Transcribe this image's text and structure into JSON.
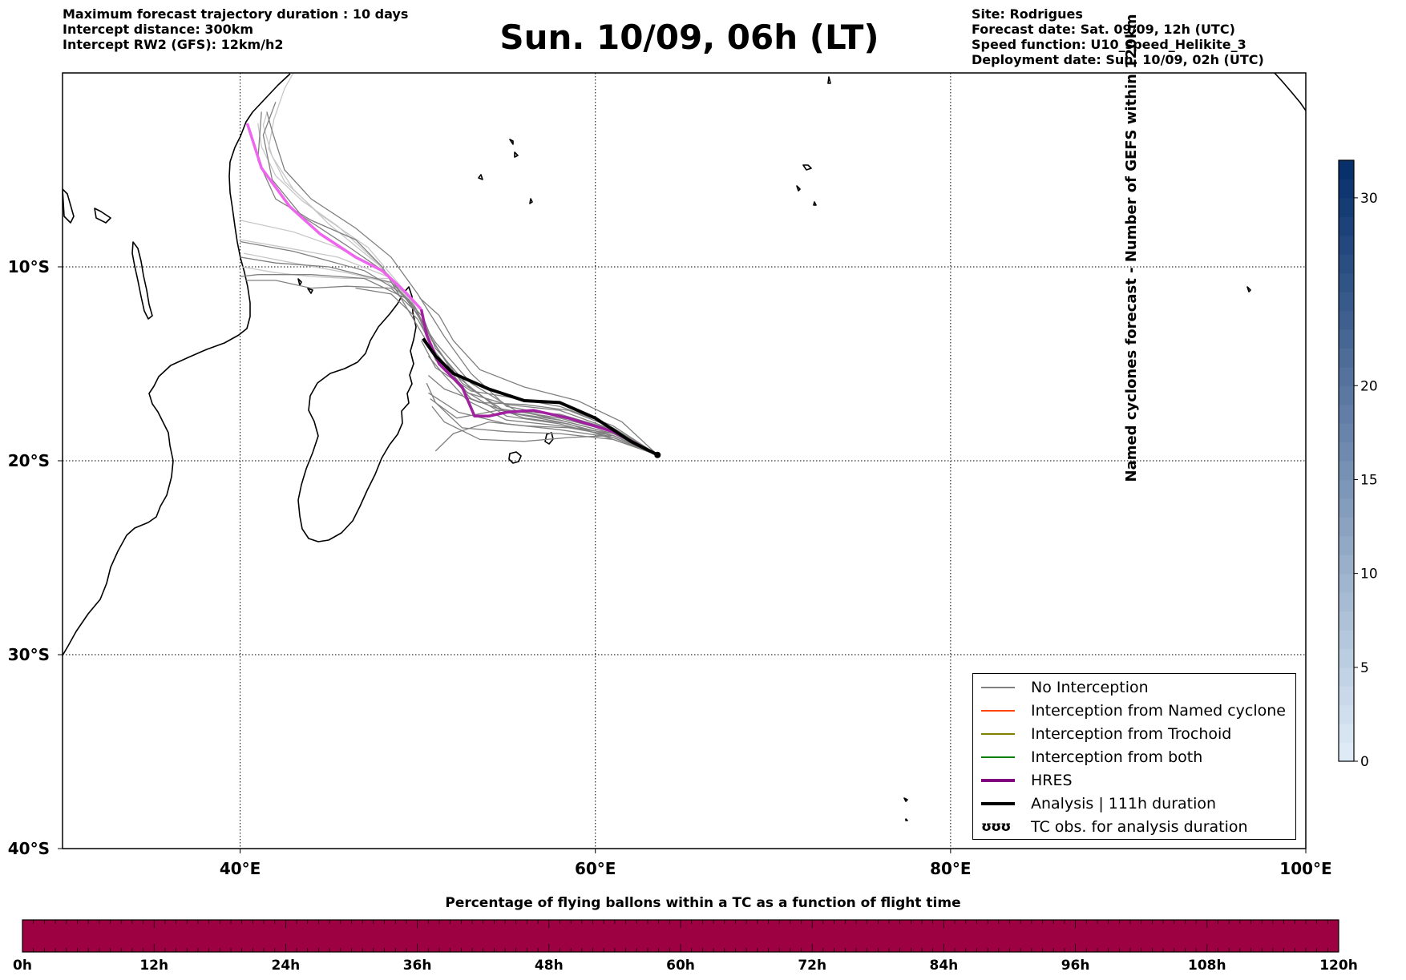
{
  "header_left": [
    "Maximum forecast trajectory duration : 10 days",
    "Intercept distance: 300km",
    "Intercept RW2 (GFS):  12km/h2"
  ],
  "title": "Sun. 10/09, 06h (LT)",
  "header_right": [
    "Site: Rodrigues",
    "Forecast date: Sat. 09/09, 12h (UTC)",
    "Speed function: U10_speed_Helikite_3",
    "Deployment date: Sun. 10/09, 02h (UTC)"
  ],
  "map": {
    "lon_range": [
      30,
      100
    ],
    "lat_range": [
      0,
      -40
    ],
    "lon_ticks": [
      {
        "value": 40,
        "label": "40°E"
      },
      {
        "value": 60,
        "label": "60°E"
      },
      {
        "value": 80,
        "label": "80°E"
      },
      {
        "value": 100,
        "label": "100°E"
      }
    ],
    "lat_ticks": [
      {
        "value": -10,
        "label": "10°S"
      },
      {
        "value": -20,
        "label": "20°S"
      },
      {
        "value": -30,
        "label": "30°S"
      },
      {
        "value": -40,
        "label": "40°S"
      }
    ],
    "grid": "dotted"
  },
  "legend": {
    "items": [
      {
        "label": "No Interception",
        "color": "#808080",
        "style": "thin"
      },
      {
        "label": "Interception from Named cyclone",
        "color": "#ff4500",
        "style": "thin"
      },
      {
        "label": "Interception from Trochoid",
        "color": "#808000",
        "style": "thin"
      },
      {
        "label": "Interception from both",
        "color": "#008000",
        "style": "thin"
      },
      {
        "label": "HRES",
        "color": "#800080",
        "style": "thick"
      },
      {
        "label": "Analysis | 111h duration",
        "color": "#000000",
        "style": "thick"
      },
      {
        "label": "TC obs. for analysis duration",
        "color": "#000000",
        "style": "glyph",
        "glyph": "ʊʊʊ"
      }
    ]
  },
  "colorbar_right": {
    "title": "Named cyclones forecast - Number of GEFS within 120km",
    "ticks": [
      {
        "value": 0,
        "label": "0"
      },
      {
        "value": 5,
        "label": "5"
      },
      {
        "value": 10,
        "label": "10"
      },
      {
        "value": 15,
        "label": "15"
      },
      {
        "value": 20,
        "label": "20"
      },
      {
        "value": 30,
        "label": "30"
      }
    ],
    "range": [
      0,
      32
    ],
    "color_low": "#deebf7",
    "color_high": "#08306b"
  },
  "colorbar_bottom": {
    "title": "Percentage of flying ballons within a TC as a function of flight time",
    "fill_color": "#9e0142",
    "ticks": [
      "0h",
      "12h",
      "24h",
      "36h",
      "48h",
      "60h",
      "72h",
      "84h",
      "96h",
      "108h",
      "120h"
    ]
  },
  "trajectories": {
    "origin": [
      63.5,
      -19.7
    ],
    "gray": [
      [
        [
          63.5,
          -19.7
        ],
        [
          61,
          -18.6
        ],
        [
          58,
          -17.9
        ],
        [
          55,
          -17.5
        ],
        [
          53,
          -16.3
        ],
        [
          51,
          -14.2
        ],
        [
          50.3,
          -12.6
        ],
        [
          49,
          -11.3
        ],
        [
          47,
          -10.2
        ],
        [
          43,
          -9.2
        ],
        [
          40,
          -8.7
        ]
      ],
      [
        [
          63.5,
          -19.7
        ],
        [
          61,
          -18.7
        ],
        [
          58,
          -18.0
        ],
        [
          55,
          -17.5
        ],
        [
          52.5,
          -16.0
        ],
        [
          50.8,
          -13.8
        ],
        [
          49.8,
          -12.0
        ],
        [
          48.5,
          -10.8
        ],
        [
          45,
          -10.0
        ],
        [
          42,
          -9.8
        ],
        [
          40,
          -9.5
        ]
      ],
      [
        [
          63.5,
          -19.7
        ],
        [
          61,
          -18.5
        ],
        [
          58,
          -17.8
        ],
        [
          54.5,
          -17.3
        ],
        [
          52,
          -15.5
        ],
        [
          50.5,
          -13.3
        ],
        [
          49.5,
          -11.7
        ],
        [
          47,
          -10.6
        ],
        [
          44,
          -10.4
        ],
        [
          41,
          -10.4
        ],
        [
          40,
          -10.5
        ]
      ],
      [
        [
          63.5,
          -19.7
        ],
        [
          61,
          -18.9
        ],
        [
          58.5,
          -18.1
        ],
        [
          56,
          -17.8
        ],
        [
          53,
          -16.8
        ],
        [
          51,
          -14.8
        ],
        [
          50,
          -12.4
        ],
        [
          48.5,
          -11.1
        ],
        [
          46,
          -11.0
        ],
        [
          44,
          -11.1
        ],
        [
          42,
          -10.7
        ],
        [
          40.3,
          -10.7
        ]
      ],
      [
        [
          63.5,
          -19.7
        ],
        [
          61,
          -18.8
        ],
        [
          58,
          -18.1
        ],
        [
          55,
          -17.7
        ],
        [
          52.5,
          -16.3
        ],
        [
          50.8,
          -14.3
        ],
        [
          49.5,
          -12.3
        ],
        [
          48,
          -10.0
        ],
        [
          46.5,
          -8.6
        ],
        [
          44,
          -7.6
        ],
        [
          42,
          -6.5
        ],
        [
          41,
          -4.5
        ],
        [
          41.2,
          -2
        ]
      ],
      [
        [
          63.5,
          -19.7
        ],
        [
          61,
          -18.6
        ],
        [
          58,
          -17.9
        ],
        [
          55.5,
          -17.4
        ],
        [
          53,
          -16.0
        ],
        [
          51,
          -13.9
        ],
        [
          49.7,
          -12.1
        ],
        [
          48.2,
          -10.3
        ],
        [
          46,
          -8.9
        ],
        [
          43.5,
          -7.4
        ],
        [
          41.8,
          -5.5
        ],
        [
          41.3,
          -3.2
        ],
        [
          42,
          -1.5
        ]
      ],
      [
        [
          63.5,
          -19.7
        ],
        [
          61,
          -18.5
        ],
        [
          58,
          -17.7
        ],
        [
          55,
          -17.2
        ],
        [
          53,
          -15.5
        ],
        [
          51.5,
          -13.6
        ],
        [
          50,
          -11.4
        ],
        [
          48.5,
          -9.5
        ],
        [
          46.5,
          -8.0
        ],
        [
          44,
          -6.5
        ],
        [
          42.5,
          -5.0
        ],
        [
          41.8,
          -3.0
        ],
        [
          41.5,
          -2.0
        ]
      ],
      [
        [
          63.5,
          -19.7
        ],
        [
          61,
          -18.7
        ],
        [
          58.5,
          -18.3
        ],
        [
          56,
          -18.2
        ],
        [
          54,
          -18.0
        ],
        [
          52,
          -18.6
        ],
        [
          51,
          -19.5
        ]
      ],
      [
        [
          63.5,
          -19.7
        ],
        [
          61,
          -18.9
        ],
        [
          58,
          -18.6
        ],
        [
          55,
          -18.5
        ],
        [
          52.5,
          -18.3
        ],
        [
          51,
          -17.0
        ],
        [
          50.5,
          -16.0
        ]
      ],
      [
        [
          63.5,
          -19.7
        ],
        [
          61,
          -18.8
        ],
        [
          58,
          -18.4
        ],
        [
          55,
          -18.1
        ],
        [
          52.3,
          -17.5
        ],
        [
          50.6,
          -16.5
        ]
      ],
      [
        [
          63.5,
          -19.7
        ],
        [
          61,
          -18.3
        ],
        [
          58.5,
          -17.4
        ],
        [
          56,
          -17.1
        ],
        [
          53.5,
          -17.0
        ],
        [
          51.5,
          -16.3
        ],
        [
          50.6,
          -15.6
        ]
      ],
      [
        [
          63.5,
          -19.7
        ],
        [
          61,
          -18.2
        ],
        [
          58,
          -17.2
        ],
        [
          55,
          -16.7
        ],
        [
          53,
          -16.4
        ],
        [
          51,
          -15.2
        ],
        [
          50.2,
          -13.8
        ]
      ],
      [
        [
          63.5,
          -19.7
        ],
        [
          61.5,
          -18.0
        ],
        [
          59,
          -16.9
        ],
        [
          56,
          -16.2
        ],
        [
          53.5,
          -15.3
        ],
        [
          52,
          -13.8
        ],
        [
          51.2,
          -12.5
        ],
        [
          50.1,
          -11.6
        ]
      ],
      [
        [
          63.5,
          -19.7
        ],
        [
          61,
          -18.4
        ],
        [
          58,
          -17.6
        ],
        [
          54.5,
          -17.4
        ],
        [
          52.2,
          -17.8
        ],
        [
          50.7,
          -16.8
        ]
      ],
      [
        [
          63.5,
          -19.7
        ],
        [
          61,
          -18.7
        ],
        [
          58.5,
          -18.8
        ],
        [
          56,
          -19.0
        ],
        [
          53.5,
          -18.9
        ],
        [
          51.5,
          -18.0
        ],
        [
          50.8,
          -17.2
        ]
      ],
      [
        [
          63.5,
          -19.7
        ],
        [
          61,
          -18.6
        ],
        [
          58,
          -18.2
        ],
        [
          55,
          -17.9
        ],
        [
          52.8,
          -16.9
        ],
        [
          51.5,
          -15.6
        ],
        [
          50.6,
          -14.6
        ]
      ],
      [
        [
          63.5,
          -19.7
        ],
        [
          61,
          -18.4
        ],
        [
          58,
          -17.4
        ],
        [
          55,
          -17.1
        ],
        [
          52.8,
          -16.5
        ],
        [
          51,
          -14.4
        ],
        [
          50,
          -12.7
        ],
        [
          48.5,
          -11.4
        ],
        [
          46.5,
          -11.1
        ]
      ]
    ],
    "lightgray": [
      [
        [
          49.8,
          -11.9
        ],
        [
          48,
          -10.2
        ],
        [
          45.5,
          -9.0
        ],
        [
          43,
          -8.2
        ],
        [
          40.5,
          -7.7
        ],
        [
          40.0,
          -7.6
        ]
      ],
      [
        [
          49.9,
          -12.1
        ],
        [
          48.3,
          -10.5
        ],
        [
          45.5,
          -9.5
        ],
        [
          42.5,
          -9.0
        ],
        [
          40.0,
          -8.6
        ]
      ],
      [
        [
          50,
          -12.2
        ],
        [
          48.3,
          -10.8
        ],
        [
          46,
          -10.3
        ],
        [
          43,
          -9.8
        ],
        [
          40.2,
          -9.3
        ]
      ],
      [
        [
          48.5,
          -10.6
        ],
        [
          46,
          -10.6
        ],
        [
          44,
          -10.5
        ],
        [
          42,
          -10.3
        ],
        [
          40.1,
          -10.0
        ]
      ],
      [
        [
          49.5,
          -11.5
        ],
        [
          47.5,
          -9.6
        ],
        [
          45.5,
          -7.9
        ],
        [
          43.5,
          -6.6
        ],
        [
          42,
          -5.3
        ],
        [
          41.2,
          -3.8
        ],
        [
          41,
          -2.6
        ]
      ],
      [
        [
          49.8,
          -12.0
        ],
        [
          47.8,
          -9.9
        ],
        [
          45,
          -7.8
        ],
        [
          43,
          -6.0
        ],
        [
          41.8,
          -4.3
        ],
        [
          41.3,
          -2.7
        ],
        [
          41.5,
          -2.1
        ]
      ],
      [
        [
          49.6,
          -11.6
        ],
        [
          47.2,
          -9.0
        ],
        [
          44.5,
          -7.3
        ],
        [
          42.5,
          -5.6
        ],
        [
          41.6,
          -3.9
        ],
        [
          41.9,
          -2.4
        ],
        [
          42.5,
          -0.8
        ],
        [
          43,
          0
        ]
      ]
    ],
    "hres": [
      [
        63.5,
        -19.7
      ],
      [
        61,
        -18.5
      ],
      [
        58.5,
        -17.8
      ],
      [
        56.5,
        -17.4
      ],
      [
        55,
        -17.5
      ],
      [
        54,
        -17.7
      ],
      [
        53.2,
        -17.7
      ],
      [
        52.5,
        -16.2
      ],
      [
        51.2,
        -15.0
      ],
      [
        50.5,
        -13.5
      ],
      [
        50.2,
        -12.2
      ],
      [
        49.3,
        -11.3
      ],
      [
        48,
        -10.2
      ],
      [
        46.5,
        -9.5
      ],
      [
        44.5,
        -8.3
      ],
      [
        42.8,
        -6.9
      ],
      [
        41.2,
        -4.9
      ],
      [
        40.4,
        -2.6
      ]
    ],
    "analysis": [
      [
        63.5,
        -19.7
      ],
      [
        62,
        -19.0
      ],
      [
        60,
        -17.8
      ],
      [
        58,
        -17.0
      ],
      [
        56,
        -16.9
      ],
      [
        54,
        -16.3
      ],
      [
        52,
        -15.5
      ],
      [
        51,
        -14.6
      ],
      [
        50.3,
        -13.7
      ]
    ]
  }
}
